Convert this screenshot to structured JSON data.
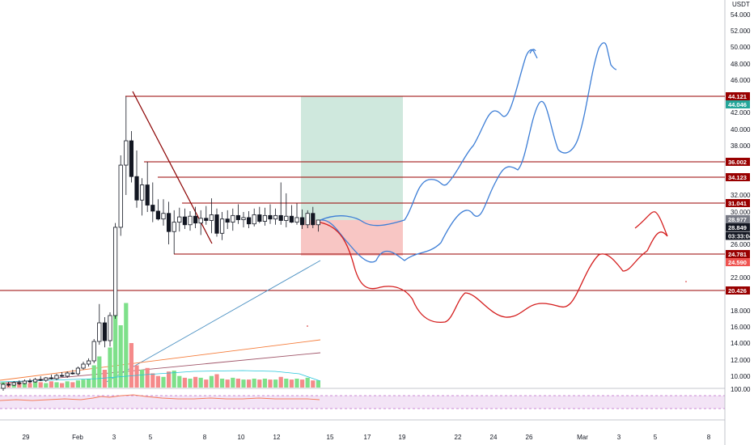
{
  "chart_data": {
    "type": "candlestick",
    "currency": "USDT",
    "price_ticks": [
      "54.000",
      "52.000",
      "50.000",
      "48.000",
      "46.000",
      "42.000",
      "40.000",
      "38.000",
      "32.000",
      "30.000",
      "26.000",
      "22.000",
      "18.000",
      "16.000",
      "14.000",
      "12.000",
      "10.000"
    ],
    "date_ticks": [
      "29",
      "Feb",
      "3",
      "5",
      "8",
      "10",
      "12",
      "15",
      "17",
      "19",
      "22",
      "24",
      "26",
      "Mar",
      "3",
      "5",
      "8"
    ],
    "rsi_level": "100.00",
    "levels": [
      {
        "value": 44.121,
        "label": "44.121",
        "color": "#990000"
      },
      {
        "value": 36.002,
        "label": "36.002",
        "color": "#990000"
      },
      {
        "value": 34.123,
        "label": "34.123",
        "color": "#990000"
      },
      {
        "value": 31.041,
        "label": "31.041",
        "color": "#990000"
      },
      {
        "value": 24.781,
        "label": "24.781",
        "color": "#990000"
      },
      {
        "value": 20.426,
        "label": "20.426",
        "color": "#990000"
      }
    ],
    "markers": [
      {
        "value": 44.046,
        "label": "44.046",
        "color": "#26a69a"
      },
      {
        "value": 28.977,
        "label": "28.977",
        "color": "#787b86"
      },
      {
        "value": 28.849,
        "label": "28.849",
        "color": "#131722"
      },
      {
        "value": 27.0,
        "label": "03:33:04",
        "color": "#131722"
      },
      {
        "value": 24.59,
        "label": "24.590",
        "color": "#ef5350"
      }
    ],
    "candles": [
      [
        8.5,
        9.2,
        8.2,
        9.0
      ],
      [
        9.0,
        9.3,
        8.7,
        8.9
      ],
      [
        8.9,
        9.4,
        8.8,
        9.2
      ],
      [
        9.2,
        9.5,
        8.9,
        9.1
      ],
      [
        9.1,
        9.6,
        9.0,
        9.4
      ],
      [
        9.4,
        9.7,
        9.1,
        9.3
      ],
      [
        9.3,
        9.8,
        9.2,
        9.6
      ],
      [
        9.6,
        10.0,
        9.4,
        9.5
      ],
      [
        9.5,
        9.9,
        9.3,
        9.8
      ],
      [
        9.8,
        10.2,
        9.6,
        9.7
      ],
      [
        9.7,
        10.3,
        9.5,
        10.1
      ],
      [
        10.1,
        10.5,
        9.9,
        10.0
      ],
      [
        10.0,
        10.6,
        9.8,
        10.4
      ],
      [
        10.4,
        10.8,
        10.2,
        10.3
      ],
      [
        10.3,
        11.2,
        10.1,
        11.0
      ],
      [
        11.0,
        11.8,
        10.8,
        11.5
      ],
      [
        11.5,
        12.2,
        11.2,
        11.9
      ],
      [
        11.9,
        14.5,
        11.6,
        14.2
      ],
      [
        14.2,
        18.8,
        13.8,
        16.5
      ],
      [
        16.5,
        17.2,
        13.5,
        14.3
      ],
      [
        14.3,
        17.8,
        13.6,
        17.4
      ],
      [
        17.4,
        28.5,
        17.0,
        28.0
      ],
      [
        28.0,
        36.8,
        27.0,
        35.6
      ],
      [
        35.6,
        44.1,
        32.0,
        38.6
      ],
      [
        38.6,
        39.8,
        33.5,
        34.2
      ],
      [
        34.2,
        37.4,
        30.5,
        31.4
      ],
      [
        31.4,
        34.0,
        29.5,
        33.2
      ],
      [
        33.2,
        36.0,
        30.0,
        30.8
      ],
      [
        30.8,
        33.5,
        28.6,
        30.1
      ],
      [
        30.1,
        31.5,
        28.8,
        29.0
      ],
      [
        29.0,
        31.5,
        28.2,
        29.8
      ],
      [
        29.8,
        31.2,
        26.0,
        27.5
      ],
      [
        27.5,
        30.2,
        24.8,
        28.6
      ],
      [
        28.6,
        30.5,
        27.5,
        29.3
      ],
      [
        29.3,
        30.4,
        27.8,
        28.3
      ],
      [
        28.3,
        30.1,
        27.6,
        29.4
      ],
      [
        29.4,
        30.6,
        27.9,
        28.5
      ],
      [
        28.5,
        30.2,
        27.1,
        29.1
      ],
      [
        29.1,
        30.7,
        28.3,
        28.8
      ],
      [
        28.8,
        31.6,
        27.3,
        29.6
      ],
      [
        29.6,
        30.4,
        26.9,
        27.3
      ],
      [
        27.3,
        30.0,
        26.5,
        29.0
      ],
      [
        29.0,
        30.2,
        27.8,
        28.6
      ],
      [
        28.6,
        30.4,
        27.6,
        29.5
      ],
      [
        29.5,
        30.9,
        28.4,
        28.9
      ],
      [
        28.9,
        30.0,
        28.0,
        29.2
      ],
      [
        29.2,
        30.1,
        27.9,
        28.4
      ],
      [
        28.4,
        30.4,
        28.1,
        29.6
      ],
      [
        29.6,
        30.6,
        28.5,
        28.7
      ],
      [
        28.7,
        30.5,
        28.2,
        29.5
      ],
      [
        29.5,
        30.9,
        28.4,
        29.0
      ],
      [
        29.0,
        30.4,
        28.3,
        29.5
      ],
      [
        29.5,
        33.5,
        28.3,
        28.8
      ],
      [
        28.8,
        32.2,
        28.0,
        29.4
      ],
      [
        29.4,
        30.8,
        28.5,
        28.6
      ],
      [
        28.6,
        31.0,
        28.3,
        29.2
      ],
      [
        29.2,
        30.3,
        27.8,
        28.3
      ],
      [
        28.3,
        30.2,
        27.9,
        29.8
      ],
      [
        29.8,
        30.6,
        27.9,
        28.3
      ],
      [
        28.3,
        28.9,
        27.5,
        28.85
      ]
    ],
    "volume": [
      0.6,
      0.5,
      0.6,
      0.5,
      0.7,
      0.5,
      0.6,
      0.6,
      0.5,
      0.7,
      0.6,
      0.5,
      0.7,
      0.6,
      0.8,
      0.9,
      1.0,
      2.5,
      3.5,
      2.0,
      4.5,
      8.5,
      7.0,
      9.5,
      5.0,
      2.5,
      2.0,
      2.2,
      1.6,
      1.3,
      1.2,
      1.8,
      1.9,
      1.3,
      1.1,
      1.0,
      1.2,
      1.1,
      0.9,
      1.3,
      1.5,
      1.0,
      0.9,
      1.1,
      1.0,
      0.9,
      0.9,
      1.0,
      0.9,
      1.0,
      0.9,
      0.9,
      1.2,
      1.0,
      0.9,
      1.0,
      0.9,
      1.1,
      0.8,
      0.8
    ]
  }
}
